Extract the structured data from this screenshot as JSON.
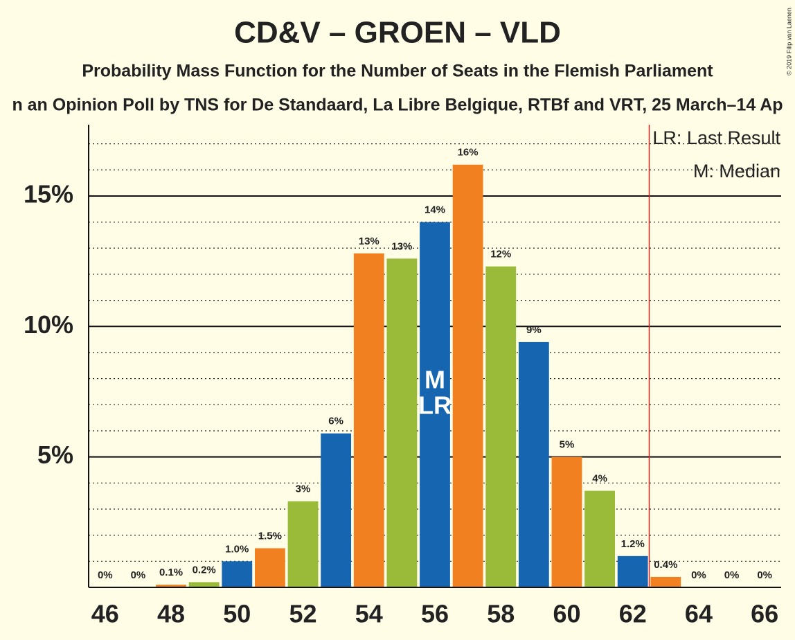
{
  "chart_data": {
    "type": "bar",
    "title": "CD&V – GROEN – VLD",
    "subtitle": "Probability Mass Function for the Number of Seats in the Flemish Parliament",
    "subtitle2": "n an Opinion Poll by TNS for De Standaard, La Libre Belgique, RTBf and VRT, 25 March–14 Ap",
    "copyright": "© 2019 Filip van Laenen",
    "x": [
      46,
      47,
      48,
      49,
      50,
      51,
      52,
      53,
      54,
      55,
      56,
      57,
      58,
      59,
      60,
      61,
      62,
      63,
      64,
      65,
      66
    ],
    "values": [
      0,
      0,
      0.1,
      0.2,
      1.0,
      1.5,
      3.3,
      5.9,
      12.8,
      12.6,
      14.0,
      16.2,
      12.3,
      9.4,
      5.0,
      3.7,
      1.2,
      0.4,
      0,
      0,
      0
    ],
    "value_labels": [
      "0%",
      "0%",
      "0.1%",
      "0.2%",
      "1.0%",
      "1.5%",
      "3%",
      "6%",
      "13%",
      "13%",
      "14%",
      "16%",
      "12%",
      "9%",
      "5%",
      "4%",
      "1.2%",
      "0.4%",
      "0%",
      "0%",
      "0%"
    ],
    "colors": [
      "#1565b0",
      "#f08020",
      "#9aba3a"
    ],
    "xlim": [
      45.5,
      66.5
    ],
    "xticks": [
      46,
      48,
      50,
      52,
      54,
      56,
      58,
      60,
      62,
      64,
      66
    ],
    "ylim": [
      0,
      17.6
    ],
    "yticks": [
      {
        "value": 5,
        "label": "5%"
      },
      {
        "value": 10,
        "label": "10%"
      },
      {
        "value": 15,
        "label": "15%"
      }
    ],
    "minor_yticks": [
      1,
      2,
      3,
      4,
      6,
      7,
      8,
      9,
      11,
      12,
      13,
      14,
      16,
      17
    ],
    "majority_line": 62.5,
    "median": 56,
    "median_label": "M",
    "last_result": 56,
    "last_result_label": "LR",
    "legend": [
      "LR: Last Result",
      "M: Median"
    ]
  }
}
